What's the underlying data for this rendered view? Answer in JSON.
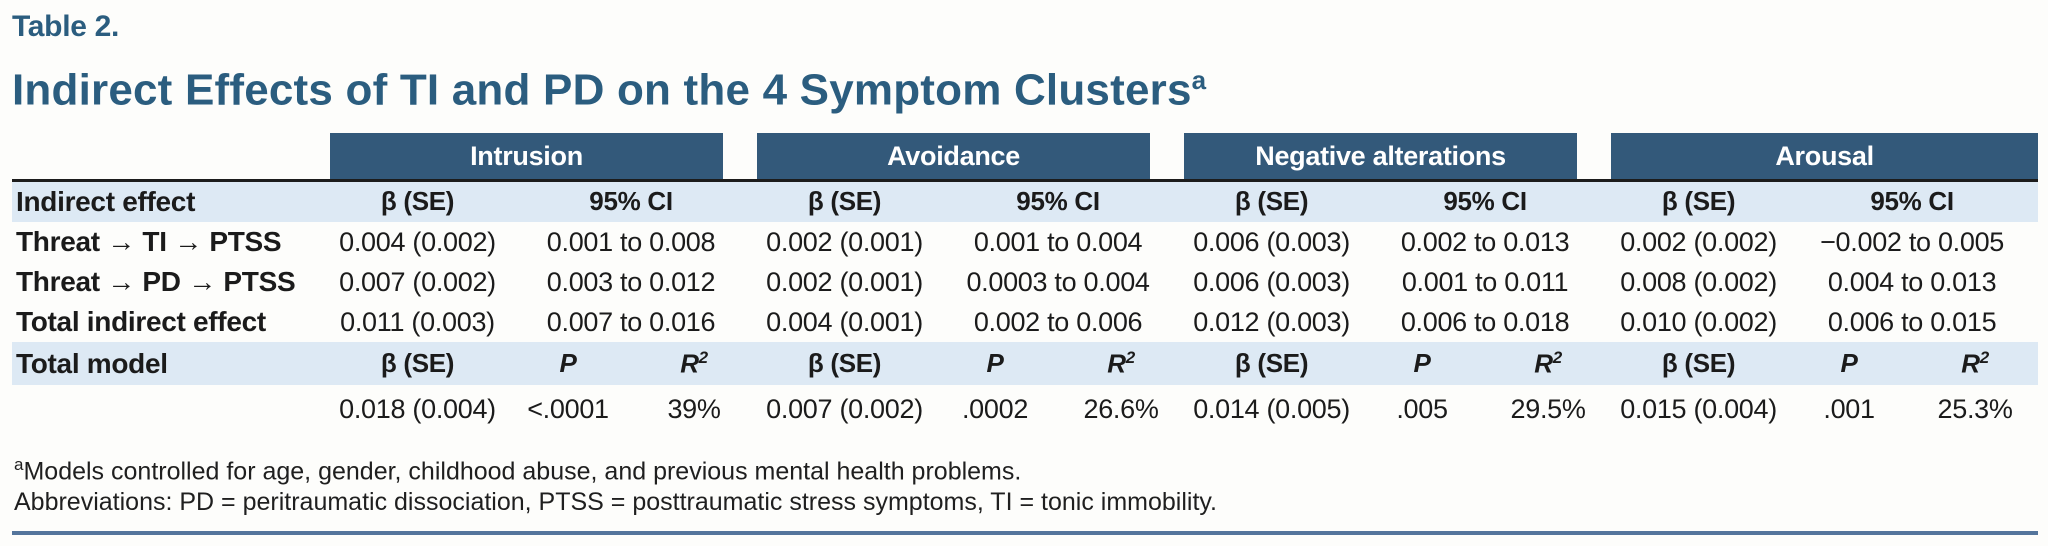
{
  "colors": {
    "heading_blue": "#2b5d7f",
    "group_header_bg": "#33597a",
    "group_header_text": "#ffffff",
    "band_bg": "#dde9f4",
    "header_rule": "#1c1c1c",
    "bottom_rule": "#54759c"
  },
  "header": {
    "table_label": "Table 2.",
    "title": "Indirect Effects of TI and PD on the 4 Symptom Clusters",
    "title_sup": "a"
  },
  "groups": [
    "Intrusion",
    "Avoidance",
    "Negative alterations",
    "Arousal"
  ],
  "column_headers": {
    "beta": "β (SE)",
    "ci": "95% CI",
    "p": "P",
    "r2": "R",
    "r2_sup": "2"
  },
  "indirect": {
    "stub_header": "Indirect effect",
    "rows": [
      {
        "label": "Threat → TI → PTSS",
        "cells": [
          "0.004 (0.002)",
          "0.001 to 0.008",
          "0.002 (0.001)",
          "0.001 to 0.004",
          "0.006 (0.003)",
          "0.002 to 0.013",
          "0.002 (0.002)",
          "−0.002 to 0.005"
        ]
      },
      {
        "label": "Threat → PD → PTSS",
        "cells": [
          "0.007 (0.002)",
          "0.003 to 0.012",
          "0.002 (0.001)",
          "0.0003 to 0.004",
          "0.006 (0.003)",
          "0.001 to 0.011",
          "0.008 (0.002)",
          "0.004 to 0.013"
        ]
      },
      {
        "label": "Total indirect effect",
        "cells": [
          "0.011 (0.003)",
          "0.007 to 0.016",
          "0.004 (0.001)",
          "0.002 to 0.006",
          "0.012 (0.003)",
          "0.006 to 0.018",
          "0.010 (0.002)",
          "0.006 to 0.015"
        ]
      }
    ]
  },
  "total_model": {
    "stub_header": "Total model",
    "values": [
      "0.018 (0.004)",
      "<.0001",
      "39%",
      "0.007 (0.002)",
      ".0002",
      "26.6%",
      "0.014 (0.005)",
      ".005",
      "29.5%",
      "0.015 (0.004)",
      ".001",
      "25.3%"
    ]
  },
  "footnotes": {
    "marker": "a",
    "note1": "Models controlled for age, gender, childhood abuse, and previous mental health problems.",
    "note2": "Abbreviations: PD = peritraumatic dissociation, PTSS = posttraumatic stress symptoms, TI = tonic immobility."
  }
}
